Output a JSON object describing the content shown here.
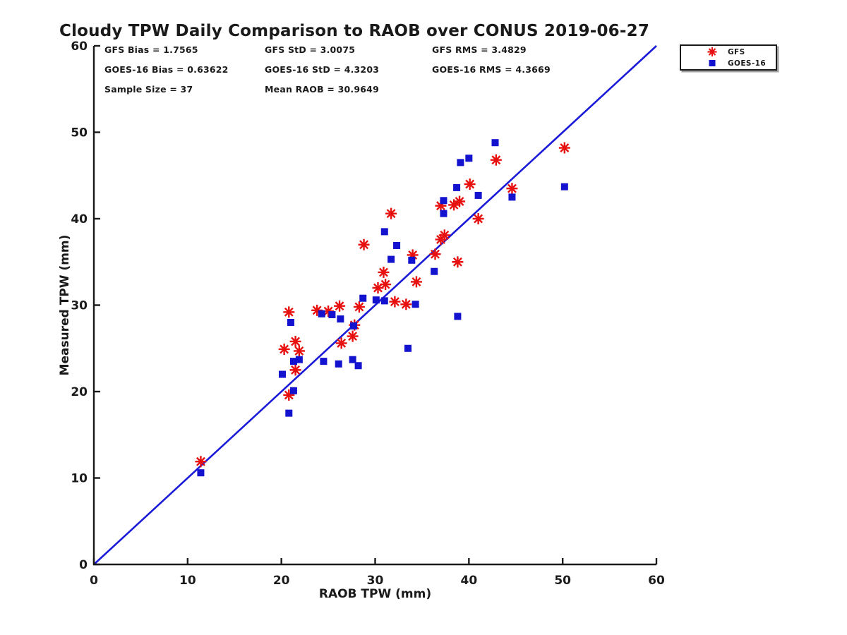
{
  "chart": {
    "title": "Cloudy TPW Daily Comparison to RAOB over CONUS 2019-06-27"
  },
  "annotations": {
    "gfs_bias": "GFS Bias = 1.7565",
    "gfs_std": "GFS StD = 3.0075",
    "gfs_rms": "GFS RMS = 3.4829",
    "goes_bias": "GOES-16 Bias = 0.63622",
    "goes_std": "GOES-16 StD = 4.3203",
    "goes_rms": "GOES-16 RMS = 4.3669",
    "sample_size": "Sample Size = 37",
    "mean_raob": "Mean RAOB = 30.9649"
  },
  "legend": {
    "items": [
      {
        "label": "GFS",
        "marker": "asterisk"
      },
      {
        "label": "GOES-16",
        "marker": "square"
      }
    ]
  },
  "colors": {
    "gfs": "#e8100e",
    "goes16": "#1212cf",
    "identity_line": "#1a1ad8",
    "axis": "#1a1a1a"
  },
  "chart_data": {
    "type": "scatter",
    "title": "Cloudy TPW Daily Comparison to RAOB over CONUS 2019-06-27",
    "xlabel": "RAOB TPW (mm)",
    "ylabel": "Measured TPW (mm)",
    "xlim": [
      0,
      60
    ],
    "ylim": [
      0,
      60
    ],
    "x_ticks": [
      0,
      10,
      20,
      30,
      40,
      50,
      60
    ],
    "y_ticks": [
      0,
      10,
      20,
      30,
      40,
      50,
      60
    ],
    "grid": false,
    "legend_position": "top-right",
    "reference_line": {
      "type": "identity",
      "from": [
        0,
        0
      ],
      "to": [
        60,
        60
      ]
    },
    "stats": {
      "gfs_bias": 1.7565,
      "gfs_std": 3.0075,
      "gfs_rms": 3.4829,
      "goes16_bias": 0.63622,
      "goes16_std": 4.3203,
      "goes16_rms": 4.3669,
      "sample_size": 37,
      "mean_raob": 30.9649
    },
    "series": [
      {
        "name": "GFS",
        "marker": "asterisk",
        "color": "#e8100e",
        "points": [
          [
            11.4,
            11.9
          ],
          [
            20.3,
            24.9
          ],
          [
            20.8,
            19.6
          ],
          [
            20.8,
            29.2
          ],
          [
            21.5,
            25.8
          ],
          [
            21.5,
            22.5
          ],
          [
            21.9,
            24.7
          ],
          [
            23.8,
            29.4
          ],
          [
            25.0,
            29.3
          ],
          [
            26.2,
            29.9
          ],
          [
            26.4,
            25.6
          ],
          [
            27.6,
            26.4
          ],
          [
            27.8,
            27.7
          ],
          [
            28.3,
            29.8
          ],
          [
            28.8,
            37.0
          ],
          [
            30.3,
            32.0
          ],
          [
            30.9,
            33.8
          ],
          [
            31.1,
            32.4
          ],
          [
            31.7,
            40.6
          ],
          [
            32.1,
            30.4
          ],
          [
            33.3,
            30.1
          ],
          [
            34.0,
            35.8
          ],
          [
            34.4,
            32.7
          ],
          [
            36.4,
            35.9
          ],
          [
            37.0,
            37.6
          ],
          [
            37.4,
            38.1
          ],
          [
            37.0,
            41.5
          ],
          [
            38.4,
            41.6
          ],
          [
            39.0,
            42.0
          ],
          [
            38.8,
            35.0
          ],
          [
            40.1,
            44.0
          ],
          [
            41.0,
            40.0
          ],
          [
            42.9,
            46.8
          ],
          [
            44.6,
            43.5
          ],
          [
            50.2,
            48.2
          ]
        ]
      },
      {
        "name": "GOES-16",
        "marker": "square",
        "color": "#1212cf",
        "points": [
          [
            11.4,
            10.6
          ],
          [
            20.1,
            22.0
          ],
          [
            20.8,
            17.5
          ],
          [
            21.0,
            28.0
          ],
          [
            21.3,
            20.1
          ],
          [
            21.3,
            23.5
          ],
          [
            21.9,
            23.7
          ],
          [
            24.3,
            29.0
          ],
          [
            24.5,
            23.5
          ],
          [
            25.4,
            28.9
          ],
          [
            26.1,
            23.2
          ],
          [
            26.3,
            28.4
          ],
          [
            27.6,
            23.7
          ],
          [
            27.7,
            27.6
          ],
          [
            28.2,
            23.0
          ],
          [
            28.7,
            30.8
          ],
          [
            30.1,
            30.6
          ],
          [
            31.0,
            30.5
          ],
          [
            31.0,
            38.5
          ],
          [
            31.7,
            35.3
          ],
          [
            32.3,
            36.9
          ],
          [
            33.5,
            25.0
          ],
          [
            33.9,
            35.2
          ],
          [
            34.3,
            30.1
          ],
          [
            36.3,
            33.9
          ],
          [
            37.3,
            42.1
          ],
          [
            37.3,
            40.6
          ],
          [
            38.7,
            43.6
          ],
          [
            38.8,
            28.7
          ],
          [
            39.1,
            46.5
          ],
          [
            40.0,
            47.0
          ],
          [
            41.0,
            42.7
          ],
          [
            42.8,
            48.8
          ],
          [
            44.6,
            42.5
          ],
          [
            50.2,
            43.7
          ]
        ]
      }
    ]
  }
}
